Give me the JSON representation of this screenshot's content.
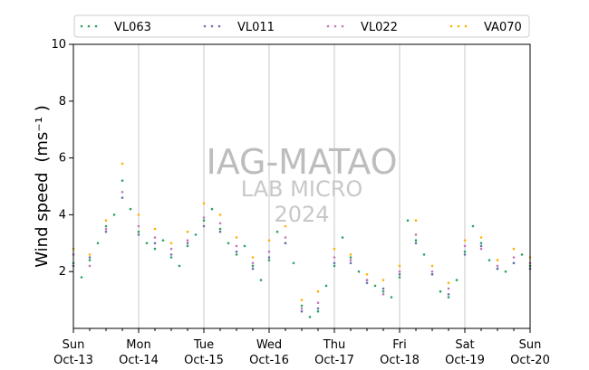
{
  "chart_data": {
    "type": "scatter",
    "ylabel": "Wind speed",
    "ylabel_units": "(ms⁻¹ )",
    "ylim": [
      0,
      10
    ],
    "yticks": [
      2,
      4,
      6,
      8,
      10
    ],
    "xlim": [
      "2024-10-13",
      "2024-10-20"
    ],
    "xticks": [
      {
        "date": "2024-10-13",
        "day": "Sun",
        "date_label": "Oct-13"
      },
      {
        "date": "2024-10-14",
        "day": "Mon",
        "date_label": "Oct-14"
      },
      {
        "date": "2024-10-15",
        "day": "Tue",
        "date_label": "Oct-15"
      },
      {
        "date": "2024-10-16",
        "day": "Wed",
        "date_label": "Oct-16"
      },
      {
        "date": "2024-10-17",
        "day": "Thu",
        "date_label": "Oct-17"
      },
      {
        "date": "2024-10-18",
        "day": "Fri",
        "date_label": "Oct-18"
      },
      {
        "date": "2024-10-19",
        "day": "Sat",
        "date_label": "Oct-19"
      },
      {
        "date": "2024-10-20",
        "day": "Sun",
        "date_label": "Oct-20"
      }
    ],
    "grid": "vertical-at-day-ticks",
    "legend_position": "top",
    "watermark": [
      "IAG-MATAO",
      "LAB MICRO",
      "2024"
    ],
    "series": [
      {
        "name": "VL063",
        "color": "#2ca25f",
        "points": [
          [
            "2024-10-13T00:00",
            2.3
          ],
          [
            "2024-10-13T03:00",
            1.8
          ],
          [
            "2024-10-13T06:00",
            2.4
          ],
          [
            "2024-10-13T09:00",
            3.0
          ],
          [
            "2024-10-13T12:00",
            3.6
          ],
          [
            "2024-10-13T15:00",
            4.0
          ],
          [
            "2024-10-13T18:00",
            5.2
          ],
          [
            "2024-10-13T21:00",
            4.2
          ],
          [
            "2024-10-14T00:00",
            3.4
          ],
          [
            "2024-10-14T03:00",
            3.0
          ],
          [
            "2024-10-14T06:00",
            2.8
          ],
          [
            "2024-10-14T09:00",
            3.1
          ],
          [
            "2024-10-14T12:00",
            2.5
          ],
          [
            "2024-10-14T15:00",
            2.2
          ],
          [
            "2024-10-14T18:00",
            2.9
          ],
          [
            "2024-10-14T21:00",
            3.3
          ],
          [
            "2024-10-15T00:00",
            3.8
          ],
          [
            "2024-10-15T03:00",
            4.2
          ],
          [
            "2024-10-15T06:00",
            3.5
          ],
          [
            "2024-10-15T09:00",
            3.0
          ],
          [
            "2024-10-15T12:00",
            2.6
          ],
          [
            "2024-10-15T15:00",
            2.9
          ],
          [
            "2024-10-15T18:00",
            2.2
          ],
          [
            "2024-10-15T21:00",
            1.7
          ],
          [
            "2024-10-16T00:00",
            2.4
          ],
          [
            "2024-10-16T03:00",
            3.4
          ],
          [
            "2024-10-16T06:00",
            3.0
          ],
          [
            "2024-10-16T09:00",
            2.3
          ],
          [
            "2024-10-16T12:00",
            0.8
          ],
          [
            "2024-10-16T15:00",
            0.4
          ],
          [
            "2024-10-16T18:00",
            0.6
          ],
          [
            "2024-10-16T21:00",
            1.5
          ],
          [
            "2024-10-17T00:00",
            2.2
          ],
          [
            "2024-10-17T03:00",
            3.2
          ],
          [
            "2024-10-17T06:00",
            2.5
          ],
          [
            "2024-10-17T09:00",
            2.0
          ],
          [
            "2024-10-17T12:00",
            1.7
          ],
          [
            "2024-10-17T15:00",
            1.5
          ],
          [
            "2024-10-17T18:00",
            1.3
          ],
          [
            "2024-10-17T21:00",
            1.1
          ],
          [
            "2024-10-18T00:00",
            1.8
          ],
          [
            "2024-10-18T03:00",
            3.8
          ],
          [
            "2024-10-18T06:00",
            3.1
          ],
          [
            "2024-10-18T09:00",
            2.6
          ],
          [
            "2024-10-18T12:00",
            1.9
          ],
          [
            "2024-10-18T15:00",
            1.3
          ],
          [
            "2024-10-18T18:00",
            1.1
          ],
          [
            "2024-10-18T21:00",
            1.7
          ],
          [
            "2024-10-19T00:00",
            2.7
          ],
          [
            "2024-10-19T03:00",
            3.6
          ],
          [
            "2024-10-19T06:00",
            3.0
          ],
          [
            "2024-10-19T09:00",
            2.4
          ],
          [
            "2024-10-19T12:00",
            2.1
          ],
          [
            "2024-10-19T15:00",
            2.0
          ],
          [
            "2024-10-19T18:00",
            2.3
          ],
          [
            "2024-10-19T21:00",
            2.6
          ],
          [
            "2024-10-20T00:00",
            2.2
          ]
        ]
      },
      {
        "name": "VL011",
        "color": "#6a6fb0",
        "points": [
          [
            "2024-10-13T00:00",
            2.2
          ],
          [
            "2024-10-13T06:00",
            2.5
          ],
          [
            "2024-10-13T12:00",
            3.4
          ],
          [
            "2024-10-13T18:00",
            4.6
          ],
          [
            "2024-10-14T00:00",
            3.3
          ],
          [
            "2024-10-14T06:00",
            3.0
          ],
          [
            "2024-10-14T12:00",
            2.6
          ],
          [
            "2024-10-14T18:00",
            3.0
          ],
          [
            "2024-10-15T00:00",
            3.6
          ],
          [
            "2024-10-15T06:00",
            3.4
          ],
          [
            "2024-10-15T12:00",
            2.7
          ],
          [
            "2024-10-15T18:00",
            2.1
          ],
          [
            "2024-10-16T00:00",
            2.5
          ],
          [
            "2024-10-16T06:00",
            3.0
          ],
          [
            "2024-10-16T12:00",
            0.6
          ],
          [
            "2024-10-16T18:00",
            0.7
          ],
          [
            "2024-10-17T00:00",
            2.3
          ],
          [
            "2024-10-17T06:00",
            2.3
          ],
          [
            "2024-10-17T12:00",
            1.6
          ],
          [
            "2024-10-17T18:00",
            1.4
          ],
          [
            "2024-10-18T00:00",
            1.9
          ],
          [
            "2024-10-18T06:00",
            3.0
          ],
          [
            "2024-10-18T12:00",
            1.9
          ],
          [
            "2024-10-18T18:00",
            1.2
          ],
          [
            "2024-10-19T00:00",
            2.6
          ],
          [
            "2024-10-19T06:00",
            2.9
          ],
          [
            "2024-10-19T12:00",
            2.1
          ],
          [
            "2024-10-19T18:00",
            2.3
          ],
          [
            "2024-10-20T00:00",
            2.1
          ]
        ]
      },
      {
        "name": "VL022",
        "color": "#c475b8",
        "points": [
          [
            "2024-10-13T00:00",
            2.6
          ],
          [
            "2024-10-13T06:00",
            2.2
          ],
          [
            "2024-10-13T12:00",
            3.5
          ],
          [
            "2024-10-13T18:00",
            4.8
          ],
          [
            "2024-10-14T00:00",
            3.6
          ],
          [
            "2024-10-14T06:00",
            3.2
          ],
          [
            "2024-10-14T12:00",
            2.8
          ],
          [
            "2024-10-14T18:00",
            3.1
          ],
          [
            "2024-10-15T00:00",
            3.9
          ],
          [
            "2024-10-15T06:00",
            3.7
          ],
          [
            "2024-10-15T12:00",
            2.9
          ],
          [
            "2024-10-15T18:00",
            2.3
          ],
          [
            "2024-10-16T00:00",
            2.7
          ],
          [
            "2024-10-16T06:00",
            3.2
          ],
          [
            "2024-10-16T12:00",
            0.7
          ],
          [
            "2024-10-16T18:00",
            0.9
          ],
          [
            "2024-10-17T00:00",
            2.5
          ],
          [
            "2024-10-17T06:00",
            2.4
          ],
          [
            "2024-10-17T12:00",
            1.7
          ],
          [
            "2024-10-17T18:00",
            1.2
          ],
          [
            "2024-10-18T00:00",
            2.0
          ],
          [
            "2024-10-18T06:00",
            3.3
          ],
          [
            "2024-10-18T12:00",
            2.0
          ],
          [
            "2024-10-18T18:00",
            1.4
          ],
          [
            "2024-10-19T00:00",
            2.9
          ],
          [
            "2024-10-19T06:00",
            2.8
          ],
          [
            "2024-10-19T12:00",
            2.2
          ],
          [
            "2024-10-19T18:00",
            2.5
          ],
          [
            "2024-10-20T00:00",
            2.3
          ]
        ]
      },
      {
        "name": "VA070",
        "color": "#ffb000",
        "points": [
          [
            "2024-10-13T00:00",
            2.8
          ],
          [
            "2024-10-13T06:00",
            2.6
          ],
          [
            "2024-10-13T12:00",
            3.8
          ],
          [
            "2024-10-13T18:00",
            5.8
          ],
          [
            "2024-10-14T00:00",
            4.0
          ],
          [
            "2024-10-14T06:00",
            3.5
          ],
          [
            "2024-10-14T12:00",
            3.0
          ],
          [
            "2024-10-14T18:00",
            3.4
          ],
          [
            "2024-10-15T00:00",
            4.4
          ],
          [
            "2024-10-15T06:00",
            4.0
          ],
          [
            "2024-10-15T12:00",
            3.2
          ],
          [
            "2024-10-15T18:00",
            2.5
          ],
          [
            "2024-10-16T00:00",
            3.1
          ],
          [
            "2024-10-16T06:00",
            3.6
          ],
          [
            "2024-10-16T12:00",
            1.0
          ],
          [
            "2024-10-16T18:00",
            1.3
          ],
          [
            "2024-10-17T00:00",
            2.8
          ],
          [
            "2024-10-17T06:00",
            2.6
          ],
          [
            "2024-10-17T12:00",
            1.9
          ],
          [
            "2024-10-17T18:00",
            1.7
          ],
          [
            "2024-10-18T00:00",
            2.2
          ],
          [
            "2024-10-18T06:00",
            3.8
          ],
          [
            "2024-10-18T12:00",
            2.2
          ],
          [
            "2024-10-18T18:00",
            1.6
          ],
          [
            "2024-10-19T00:00",
            3.1
          ],
          [
            "2024-10-19T06:00",
            3.2
          ],
          [
            "2024-10-19T12:00",
            2.4
          ],
          [
            "2024-10-19T18:00",
            2.8
          ],
          [
            "2024-10-20T00:00",
            2.5
          ]
        ]
      }
    ]
  }
}
